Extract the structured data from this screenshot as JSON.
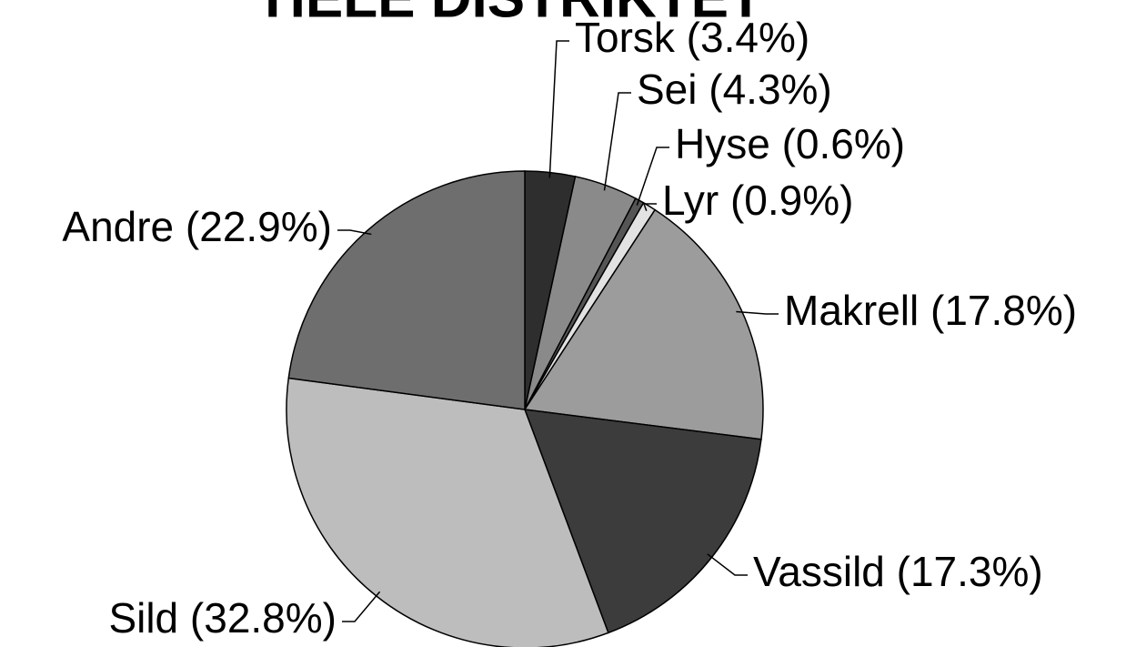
{
  "chart_data": {
    "type": "pie",
    "title": "HELE DISTRIKTET",
    "categories": [
      "Torsk",
      "Sei",
      "Hyse",
      "Lyr",
      "Makrell",
      "Vassild",
      "Sild",
      "Andre"
    ],
    "values": [
      3.4,
      4.3,
      0.6,
      0.9,
      17.8,
      17.3,
      32.8,
      22.9
    ],
    "value_labels": [
      "Torsk (3.4%)",
      "Sei (4.3%)",
      "Hyse (0.6%)",
      "Lyr (0.9%)",
      "Makrell (17.8%)",
      "Vassild (17.3%)",
      "Sild (32.8%)",
      "Andre (22.9%)"
    ],
    "colors": [
      "#2e2e2e",
      "#8a8a8a",
      "#555555",
      "#e2e2e2",
      "#9c9c9c",
      "#3c3c3c",
      "#bdbdbd",
      "#6e6e6e"
    ]
  }
}
